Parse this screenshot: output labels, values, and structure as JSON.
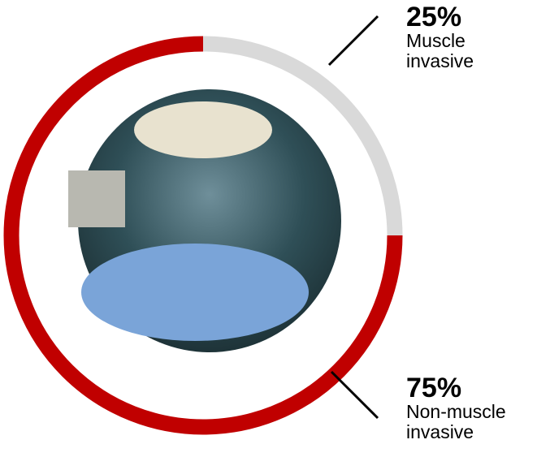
{
  "chart_data": {
    "type": "donut",
    "categories": [
      "Muscle invasive",
      "Non-muscle invasive"
    ],
    "values": [
      25,
      75
    ],
    "value_labels": [
      "25%",
      "75%"
    ],
    "colors": [
      "#d9d9d9",
      "#c00000"
    ]
  }
}
